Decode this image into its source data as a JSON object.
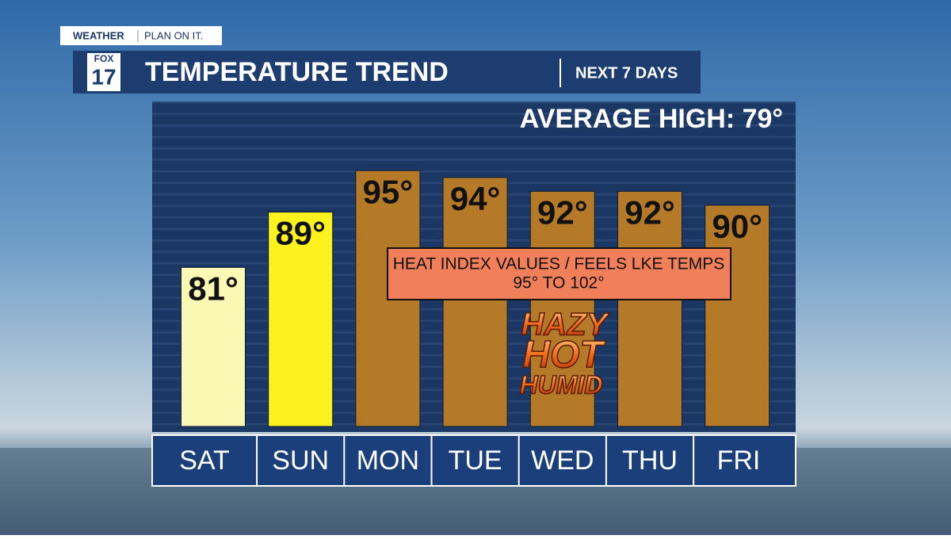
{
  "brand": {
    "weather": "WEATHER",
    "tagline": "PLAN ON IT.",
    "logo_top": "FOX",
    "logo_num": "17"
  },
  "header": {
    "title": "TEMPERATURE TREND",
    "right": "NEXT 7 DAYS"
  },
  "chart_data": {
    "type": "bar",
    "subtitle": "AVERAGE HIGH:  79°",
    "categories": [
      "SAT",
      "SUN",
      "MON",
      "TUE",
      "WED",
      "THU",
      "FRI"
    ],
    "values": [
      81,
      89,
      95,
      94,
      92,
      92,
      90
    ],
    "value_labels": [
      "81°",
      "89°",
      "95°",
      "94°",
      "92°",
      "92°",
      "90°"
    ],
    "colors": [
      "#fbf8b4",
      "#fbf21e",
      "#b47a27",
      "#b47a27",
      "#b47a27",
      "#b47a27",
      "#b47a27"
    ],
    "ylim": [
      58,
      105
    ],
    "annotations": {
      "box_line1": "HEAT INDEX VALUES / FEELS LKE TEMPS",
      "box_line2": "95° TO 102°",
      "stamp": [
        "HAZY",
        "HOT",
        "HUMID"
      ]
    }
  }
}
